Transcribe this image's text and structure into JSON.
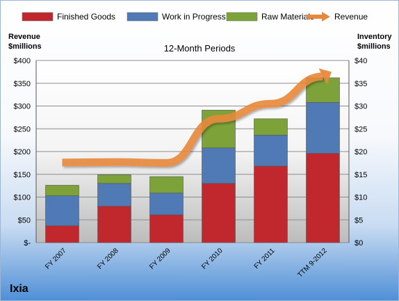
{
  "chart_data": {
    "type": "bar",
    "title": "12-Month Periods",
    "company": "Ixia",
    "left_axis_label": [
      "Revenue",
      "$millions"
    ],
    "right_axis_label": [
      "Inventory",
      "$millions"
    ],
    "categories": [
      "FY 2007",
      "FY 2008",
      "FY 2009",
      "FY 2010",
      "FY 2011",
      "TTM 9-2012"
    ],
    "left_ticks": [
      "$-",
      "$50",
      "$100",
      "$150",
      "$200",
      "$250",
      "$300",
      "$350",
      "$400"
    ],
    "right_ticks": [
      "$0",
      "$5",
      "$10",
      "$15",
      "$20",
      "$25",
      "$30",
      "$35",
      "$40"
    ],
    "left_ylim": [
      0,
      400
    ],
    "right_ylim": [
      0,
      40
    ],
    "series": [
      {
        "name": "Finished Goods",
        "axis": "right",
        "stacked": true,
        "color": "#c0282d",
        "values": [
          3.7,
          8.0,
          6.1,
          13.0,
          16.8,
          19.6
        ]
      },
      {
        "name": "Work in Progress",
        "axis": "right",
        "stacked": true,
        "color": "#4f7ab5",
        "values": [
          6.6,
          5.0,
          4.8,
          7.8,
          6.8,
          11.2
        ]
      },
      {
        "name": "Raw Materials",
        "axis": "right",
        "stacked": true,
        "color": "#7da23a",
        "values": [
          2.3,
          1.9,
          3.6,
          8.3,
          3.6,
          5.4
        ]
      },
      {
        "name": "Revenue",
        "axis": "left",
        "type": "line",
        "color": "#e8883a",
        "values": [
          176,
          177,
          175,
          272,
          305,
          365
        ]
      }
    ],
    "legend_position": "top",
    "grid": true
  }
}
